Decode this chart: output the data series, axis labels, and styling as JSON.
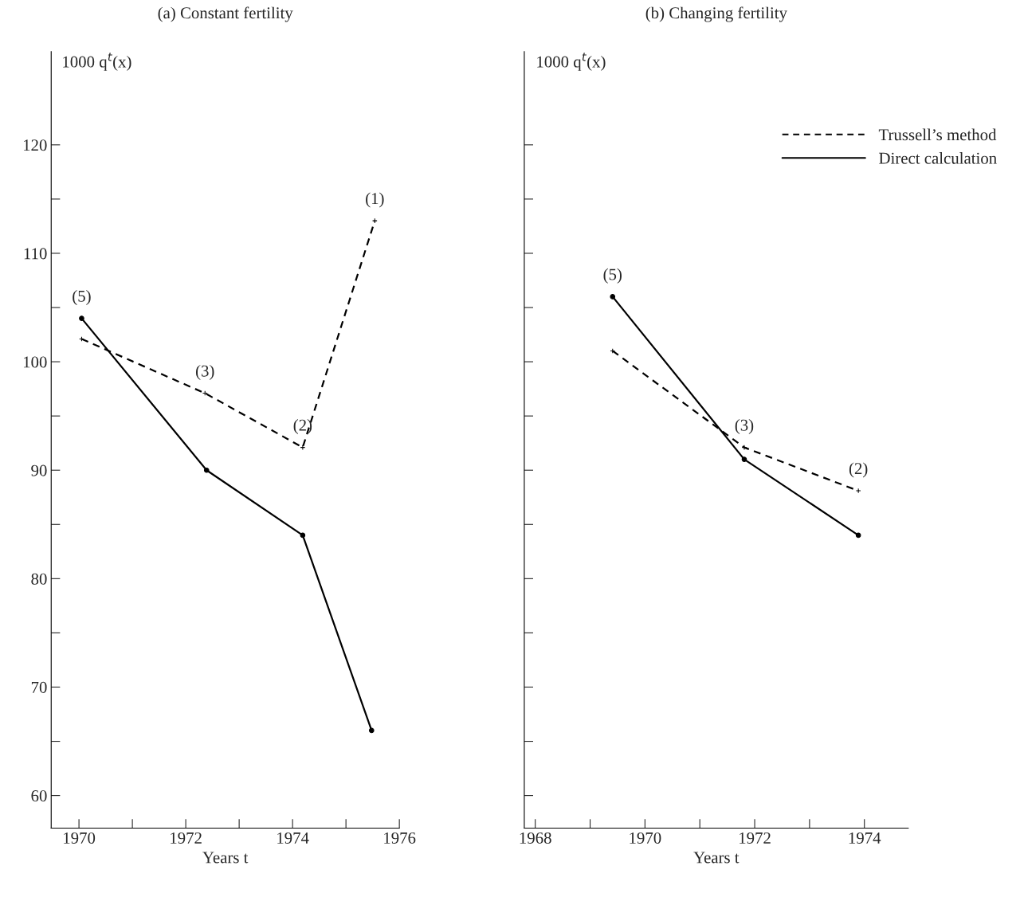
{
  "chart_data": [
    {
      "type": "line",
      "title": "(a) Constant fertility",
      "xlabel": "Years t",
      "ylabel": "1000 q$^{t}$(x)",
      "xlim": [
        1969.48,
        1976
      ],
      "xticks": [
        1970,
        {
          "value": 1971,
          "label": null
        },
        1972,
        {
          "value": 1973,
          "label": null
        },
        1974,
        {
          "value": 1975,
          "label": null
        },
        1976
      ],
      "ylim": [
        57,
        128.6
      ],
      "yticks": [
        60,
        {
          "value": 65,
          "label": null
        },
        70,
        {
          "value": 75,
          "label": null
        },
        80,
        {
          "value": 85,
          "label": null
        },
        90,
        {
          "value": 95,
          "label": null
        },
        100,
        {
          "value": 105,
          "label": null
        },
        110,
        {
          "value": 115,
          "label": null
        },
        120
      ],
      "grid": false,
      "series": [
        {
          "color": "#000000",
          "line_style": "dashed",
          "marker": "cross",
          "x": [
            1970.05,
            1972.36,
            1974.19,
            1975.54
          ],
          "values": [
            102.1,
            97.1,
            92.1,
            113.0
          ]
        },
        {
          "color": "#000000",
          "line_style": "solid",
          "marker": "circle",
          "x": [
            1970.05,
            1972.39,
            1974.19,
            1975.48
          ],
          "values": [
            104.0,
            90.0,
            84.0,
            66.0
          ]
        }
      ],
      "annotations": [
        {
          "text": "(5)",
          "x": 1970.05,
          "y": 104.0
        },
        {
          "text": "(3)",
          "x": 1972.36,
          "y": 97.1
        },
        {
          "text": "(2)",
          "x": 1974.19,
          "y": 92.1
        },
        {
          "text": "(1)",
          "x": 1975.54,
          "y": 113.0
        }
      ]
    },
    {
      "type": "line",
      "title": "(b) Changing fertility",
      "xlabel": "Years t",
      "ylabel": "1000 q$^{t}$(x)",
      "xlim": [
        1967.8,
        1974.8
      ],
      "xticks": [
        1968,
        {
          "value": 1969,
          "label": null
        },
        1970,
        {
          "value": 1971,
          "label": null
        },
        1972,
        {
          "value": 1973,
          "label": null
        },
        1974
      ],
      "ylim": [
        57,
        128.6
      ],
      "yticks": [
        60,
        65,
        70,
        75,
        80,
        85,
        90,
        95,
        100,
        105,
        110,
        115,
        120
      ],
      "tick_labels": "x",
      "grid": false,
      "legend": "top right",
      "series": [
        {
          "name": "Trussell’s method",
          "color": "#000000",
          "line_style": "dashed",
          "marker": "cross",
          "x": [
            1969.41,
            1971.81,
            1973.89
          ],
          "values": [
            101.0,
            92.1,
            88.1
          ]
        },
        {
          "name": "Direct calculation",
          "color": "#000000",
          "line_style": "solid",
          "marker": "circle",
          "x": [
            1969.41,
            1971.81,
            1973.89
          ],
          "values": [
            106.0,
            91.0,
            84.0
          ]
        }
      ],
      "annotations": [
        {
          "text": "(5)",
          "x": 1969.41,
          "y": 106.0
        },
        {
          "text": "(3)",
          "x": 1971.81,
          "y": 92.1
        },
        {
          "text": "(2)",
          "x": 1973.89,
          "y": 88.1
        }
      ]
    }
  ]
}
